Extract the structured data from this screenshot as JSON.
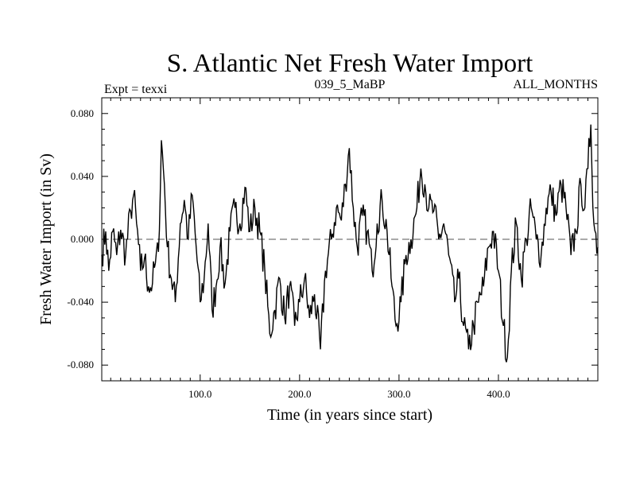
{
  "chart_data": {
    "type": "line",
    "title": "S. Atlantic Net Fresh Water Import",
    "subtitle_left": "Expt = texxi",
    "subtitle_center": "039_5_MaBP",
    "subtitle_right": "ALL_MONTHS",
    "xlabel": "Time (in years since start)",
    "ylabel": "Fresh Water Import (in Sv)",
    "xlim": [
      1,
      500
    ],
    "ylim": [
      -0.09,
      0.09
    ],
    "x_ticks": [
      100,
      200,
      300,
      400
    ],
    "x_tick_labels": [
      "100.0",
      "200.0",
      "300.0",
      "400.0"
    ],
    "y_ticks": [
      -0.08,
      -0.04,
      0.0,
      0.04,
      0.08
    ],
    "y_tick_labels": [
      "-0.080",
      "-0.040",
      "0.000",
      "0.040",
      "0.080"
    ],
    "reference_line": 0.0,
    "anchor_points": [
      [
        1,
        -0.01
      ],
      [
        5,
        0.005
      ],
      [
        8,
        -0.02
      ],
      [
        12,
        0.005
      ],
      [
        16,
        -0.01
      ],
      [
        20,
        0.006
      ],
      [
        25,
        -0.01
      ],
      [
        30,
        0.018
      ],
      [
        33,
        0.028
      ],
      [
        36,
        0.01
      ],
      [
        40,
        -0.02
      ],
      [
        44,
        -0.012
      ],
      [
        48,
        -0.03
      ],
      [
        52,
        -0.028
      ],
      [
        55,
        -0.015
      ],
      [
        58,
        -0.008
      ],
      [
        61,
        0.063
      ],
      [
        64,
        0.035
      ],
      [
        67,
        -0.005
      ],
      [
        71,
        -0.025
      ],
      [
        75,
        -0.04
      ],
      [
        80,
        0.01
      ],
      [
        84,
        0.025
      ],
      [
        88,
        0.0
      ],
      [
        92,
        0.028
      ],
      [
        96,
        -0.005
      ],
      [
        100,
        -0.04
      ],
      [
        104,
        -0.025
      ],
      [
        108,
        0.01
      ],
      [
        112,
        -0.045
      ],
      [
        116,
        -0.03
      ],
      [
        120,
        -0.005
      ],
      [
        125,
        -0.028
      ],
      [
        130,
        0.005
      ],
      [
        135,
        0.02
      ],
      [
        140,
        0.01
      ],
      [
        145,
        0.033
      ],
      [
        150,
        0.005
      ],
      [
        155,
        0.02
      ],
      [
        160,
        0.005
      ],
      [
        165,
        -0.02
      ],
      [
        170,
        -0.06
      ],
      [
        175,
        -0.045
      ],
      [
        180,
        -0.025
      ],
      [
        185,
        -0.05
      ],
      [
        190,
        -0.03
      ],
      [
        195,
        -0.055
      ],
      [
        200,
        -0.04
      ],
      [
        205,
        -0.025
      ],
      [
        210,
        -0.05
      ],
      [
        215,
        -0.035
      ],
      [
        221,
        -0.07
      ],
      [
        226,
        -0.02
      ],
      [
        232,
        0.0
      ],
      [
        237,
        0.02
      ],
      [
        242,
        0.012
      ],
      [
        246,
        0.035
      ],
      [
        250,
        0.058
      ],
      [
        254,
        0.02
      ],
      [
        258,
        -0.005
      ],
      [
        263,
        0.015
      ],
      [
        268,
        0.005
      ],
      [
        273,
        -0.02
      ],
      [
        278,
        0.01
      ],
      [
        283,
        0.025
      ],
      [
        288,
        0.005
      ],
      [
        293,
        -0.03
      ],
      [
        297,
        -0.055
      ],
      [
        302,
        -0.04
      ],
      [
        307,
        -0.01
      ],
      [
        312,
        0.0
      ],
      [
        318,
        0.02
      ],
      [
        322,
        0.045
      ],
      [
        326,
        0.035
      ],
      [
        330,
        0.02
      ],
      [
        335,
        0.018
      ],
      [
        340,
        0.0
      ],
      [
        345,
        0.01
      ],
      [
        350,
        -0.01
      ],
      [
        356,
        -0.04
      ],
      [
        360,
        -0.025
      ],
      [
        365,
        -0.055
      ],
      [
        370,
        -0.07
      ],
      [
        375,
        -0.055
      ],
      [
        380,
        -0.04
      ],
      [
        385,
        -0.03
      ],
      [
        390,
        -0.005
      ],
      [
        395,
        0.005
      ],
      [
        400,
        -0.02
      ],
      [
        405,
        -0.055
      ],
      [
        409,
        -0.075
      ],
      [
        413,
        -0.02
      ],
      [
        418,
        0.01
      ],
      [
        423,
        -0.025
      ],
      [
        428,
        0.0
      ],
      [
        433,
        0.02
      ],
      [
        438,
        0.0
      ],
      [
        443,
        -0.01
      ],
      [
        448,
        0.02
      ],
      [
        453,
        0.03
      ],
      [
        458,
        0.015
      ],
      [
        463,
        0.035
      ],
      [
        468,
        0.02
      ],
      [
        473,
        -0.01
      ],
      [
        478,
        0.005
      ],
      [
        483,
        0.035
      ],
      [
        487,
        0.02
      ],
      [
        490,
        0.045
      ],
      [
        493,
        0.073
      ],
      [
        496,
        0.01
      ],
      [
        500,
        -0.005
      ]
    ]
  }
}
